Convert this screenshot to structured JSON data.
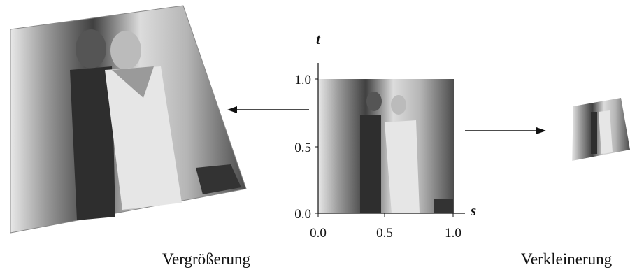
{
  "axes": {
    "y_label": "t",
    "x_label": "s",
    "y_ticks": [
      "1.0",
      "0.5",
      "0.0"
    ],
    "x_ticks": [
      "0.0",
      "0.5",
      "1.0"
    ]
  },
  "captions": {
    "magnification": "Vergrößerung",
    "minification": "Verkleinerung"
  }
}
